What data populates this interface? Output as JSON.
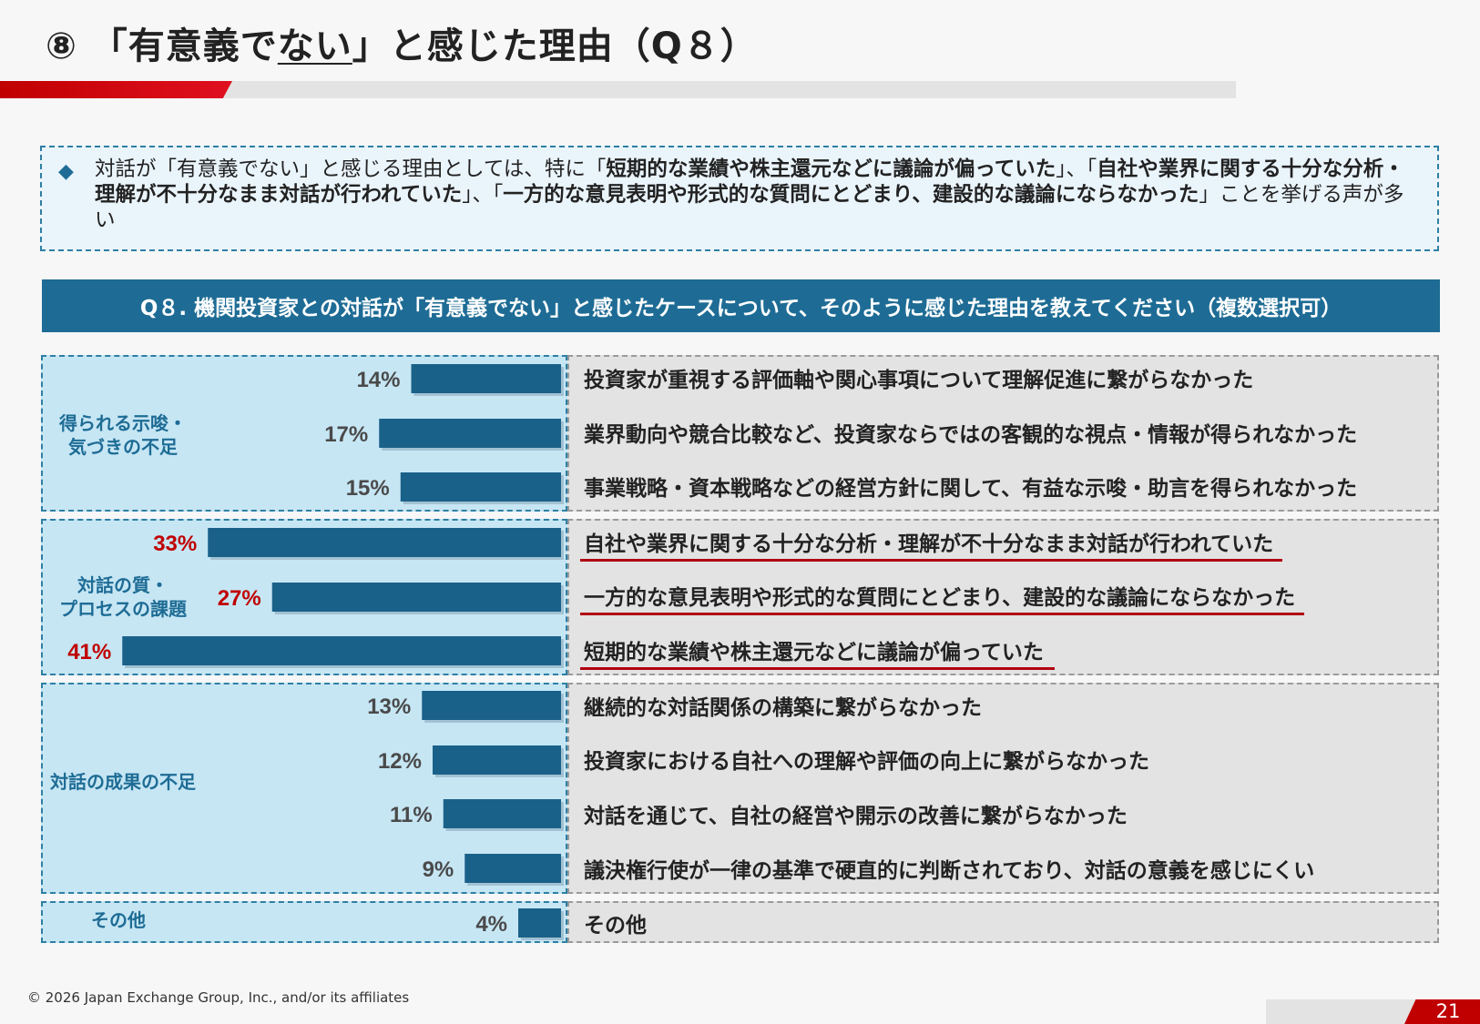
{
  "page": {
    "title_prefix": "⑧ 「有意義で",
    "title_under": "ない",
    "title_suffix": "」と感じた理由（Q８）",
    "footer": "© 2026 Japan Exchange Group, Inc., and/or its affiliates",
    "page_number": "21"
  },
  "summary": {
    "p1": "対話が「有意義でない」と感じる理由としては、特に「",
    "b1": "短期的な業績や株主還元などに議論が偏っていた",
    "p2": "」、「",
    "b2": "自社や業界に関する十分な分析・理解が不十分なまま対話が行われていた",
    "p3": "」、「",
    "b3": "一方的な意見表明や形式的な質問にとどまり、建設的な議論にならなかった",
    "p4": "」ことを挙げる声が多い"
  },
  "question": "Q８. 機関投資家との対話が「有意義でない」と感じたケースについて、そのように感じた理由を教えてください（複数選択可）",
  "groups": [
    {
      "label_l1": "得られる示唆・",
      "label_l2": "気づきの不足"
    },
    {
      "label_l1": "対話の質・",
      "label_l2": "プロセスの課題"
    },
    {
      "label_l1": "対話の成果の不足",
      "label_l2": ""
    },
    {
      "label_l1": "その他",
      "label_l2": ""
    }
  ],
  "colors": {
    "bar": "#1a6189",
    "emphasis": "#c00000",
    "label": "#4a4a4a"
  },
  "chart_data": {
    "type": "bar",
    "orientation": "horizontal",
    "categories": [
      "投資家が重視する評価軸や関心事項について理解促進に繋がらなかった",
      "業界動向や競合比較など、投資家ならではの客観的な視点・情報が得られなかった",
      "事業戦略・資本戦略などの経営方針に関して、有益な示唆・助言を得られなかった",
      "自社や業界に関する十分な分析・理解が不十分なまま対話が行われていた",
      "一方的な意見表明や形式的な質問にとどまり、建設的な議論にならなかった",
      "短期的な業績や株主還元などに議論が偏っていた",
      "継続的な対話関係の構築に繋がらなかった",
      "投資家における自社への理解や評価の向上に繋がらなかった",
      "対話を通じて、自社の経営や開示の改善に繋がらなかった",
      "議決権行使が一律の基準で硬直的に判断されており、対話の意義を感じにくい",
      "その他"
    ],
    "values": [
      14,
      17,
      15,
      33,
      27,
      41,
      13,
      12,
      11,
      9,
      4
    ],
    "value_labels": [
      "14%",
      "17%",
      "15%",
      "33%",
      "27%",
      "41%",
      "13%",
      "12%",
      "11%",
      "9%",
      "4%"
    ],
    "highlighted": [
      false,
      false,
      false,
      true,
      true,
      true,
      false,
      false,
      false,
      false,
      false
    ],
    "group_index": [
      0,
      0,
      0,
      1,
      1,
      1,
      2,
      2,
      2,
      2,
      3
    ],
    "xlim": [
      0,
      45
    ],
    "title": "",
    "xlabel": "",
    "ylabel": ""
  }
}
